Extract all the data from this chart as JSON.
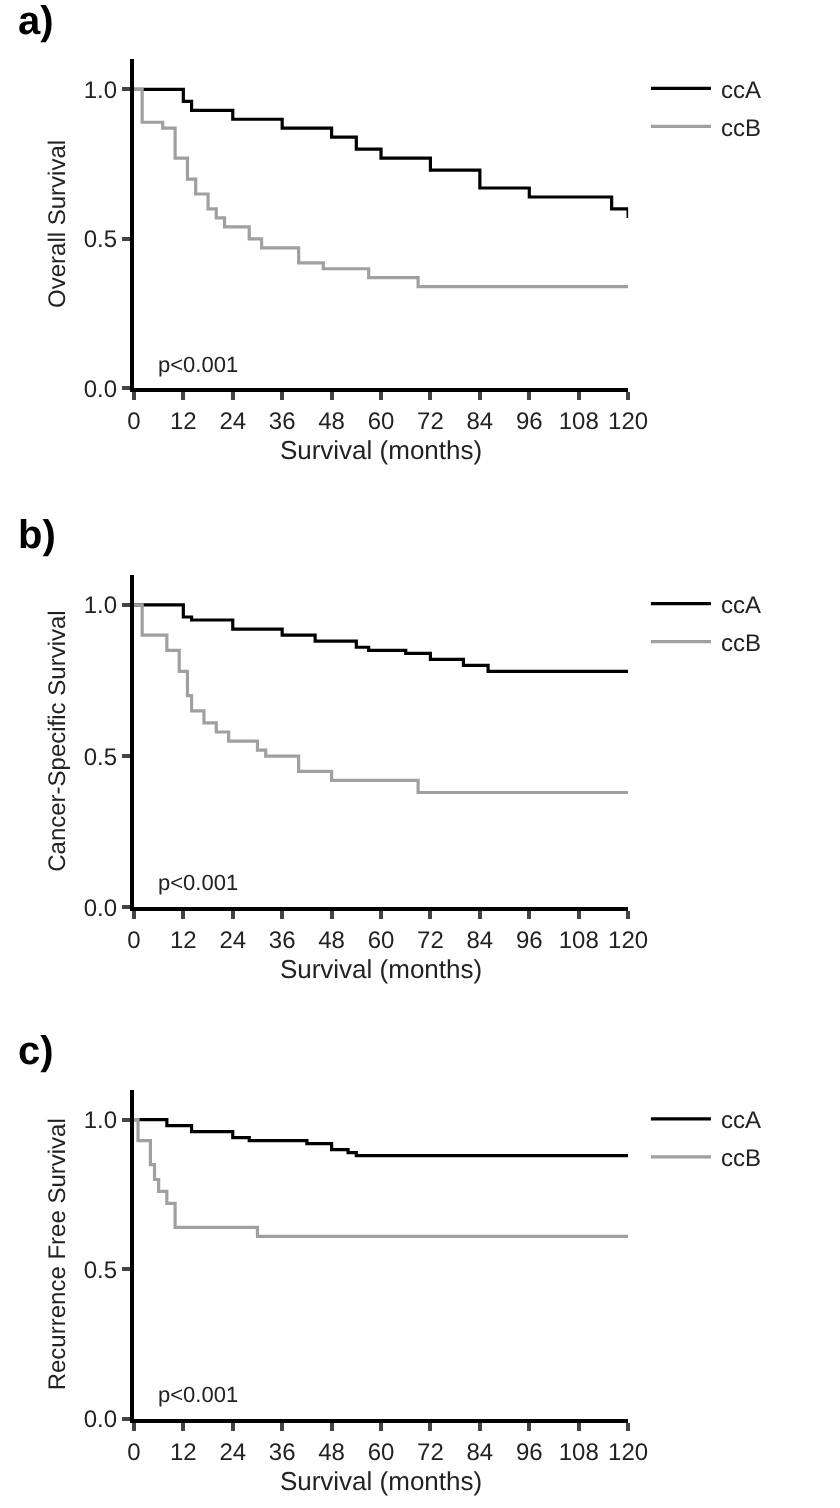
{
  "chart_data": [
    {
      "type": "step",
      "title": "a)",
      "xlabel": "Survival (months)",
      "ylabel": "Overall Survival",
      "xlim": [
        0,
        120
      ],
      "xticks": [
        0,
        12,
        24,
        36,
        48,
        60,
        72,
        84,
        96,
        108,
        120
      ],
      "ylim": [
        0,
        1.1
      ],
      "yticks": [
        {
          "value": 0,
          "label": "0.0"
        },
        {
          "value": 0.5,
          "label": "0.5"
        },
        {
          "value": 1,
          "label": "1.0"
        }
      ],
      "annotations": [
        "p<0.001"
      ],
      "legend": "top right",
      "series": [
        {
          "name": "ccA",
          "color": "#000000",
          "x": [
            0,
            12,
            14,
            24,
            36,
            48,
            54,
            60,
            72,
            84,
            96,
            113,
            116,
            120
          ],
          "values": [
            1.0,
            0.96,
            0.93,
            0.9,
            0.87,
            0.84,
            0.8,
            0.77,
            0.73,
            0.67,
            0.64,
            0.64,
            0.6,
            0.57
          ]
        },
        {
          "name": "ccB",
          "color": "#a0a0a0",
          "x": [
            0,
            2,
            7,
            10,
            13,
            15,
            18,
            20,
            22,
            28,
            31,
            40,
            46,
            57,
            69,
            120
          ],
          "values": [
            1.0,
            0.89,
            0.87,
            0.77,
            0.7,
            0.65,
            0.6,
            0.57,
            0.54,
            0.5,
            0.47,
            0.42,
            0.4,
            0.37,
            0.34,
            0.34
          ]
        }
      ]
    },
    {
      "type": "step",
      "title": "b)",
      "xlabel": "Survival (months)",
      "ylabel": "Cancer-Specific Survival",
      "xlim": [
        0,
        120
      ],
      "xticks": [
        0,
        12,
        24,
        36,
        48,
        60,
        72,
        84,
        96,
        108,
        120
      ],
      "ylim": [
        0,
        1.1
      ],
      "yticks": [
        {
          "value": 0,
          "label": "0.0"
        },
        {
          "value": 0.5,
          "label": "0.5"
        },
        {
          "value": 1,
          "label": "1.0"
        }
      ],
      "annotations": [
        "p<0.001"
      ],
      "legend": "top right",
      "series": [
        {
          "name": "ccA",
          "color": "#000000",
          "x": [
            0,
            12,
            14,
            24,
            36,
            44,
            54,
            57,
            66,
            72,
            80,
            86,
            120
          ],
          "values": [
            1.0,
            0.96,
            0.95,
            0.92,
            0.9,
            0.88,
            0.86,
            0.85,
            0.84,
            0.82,
            0.8,
            0.78,
            0.78
          ]
        },
        {
          "name": "ccB",
          "color": "#a0a0a0",
          "x": [
            0,
            2,
            8,
            11,
            13,
            14,
            17,
            20,
            23,
            30,
            32,
            40,
            48,
            69,
            120
          ],
          "values": [
            1.0,
            0.9,
            0.85,
            0.78,
            0.7,
            0.65,
            0.61,
            0.58,
            0.55,
            0.52,
            0.5,
            0.45,
            0.42,
            0.38,
            0.38
          ]
        }
      ]
    },
    {
      "type": "step",
      "title": "c)",
      "xlabel": "Survival (months)",
      "ylabel": "Recurrence Free Survival",
      "xlim": [
        0,
        120
      ],
      "xticks": [
        0,
        12,
        24,
        36,
        48,
        60,
        72,
        84,
        96,
        108,
        120
      ],
      "ylim": [
        0,
        1.1
      ],
      "yticks": [
        {
          "value": 0,
          "label": "0.0"
        },
        {
          "value": 0.5,
          "label": "0.5"
        },
        {
          "value": 1,
          "label": "1.0"
        }
      ],
      "annotations": [
        "p<0.001"
      ],
      "legend": "top right",
      "series": [
        {
          "name": "ccA",
          "color": "#000000",
          "x": [
            0,
            8,
            14,
            24,
            28,
            42,
            48,
            52,
            54,
            120
          ],
          "values": [
            1.0,
            0.98,
            0.96,
            0.94,
            0.93,
            0.92,
            0.9,
            0.89,
            0.88,
            0.88
          ]
        },
        {
          "name": "ccB",
          "color": "#a0a0a0",
          "x": [
            0,
            1,
            4,
            5,
            6,
            8,
            10,
            30,
            120
          ],
          "values": [
            1.0,
            0.93,
            0.85,
            0.8,
            0.76,
            0.72,
            0.64,
            0.61,
            0.61
          ]
        }
      ]
    }
  ]
}
